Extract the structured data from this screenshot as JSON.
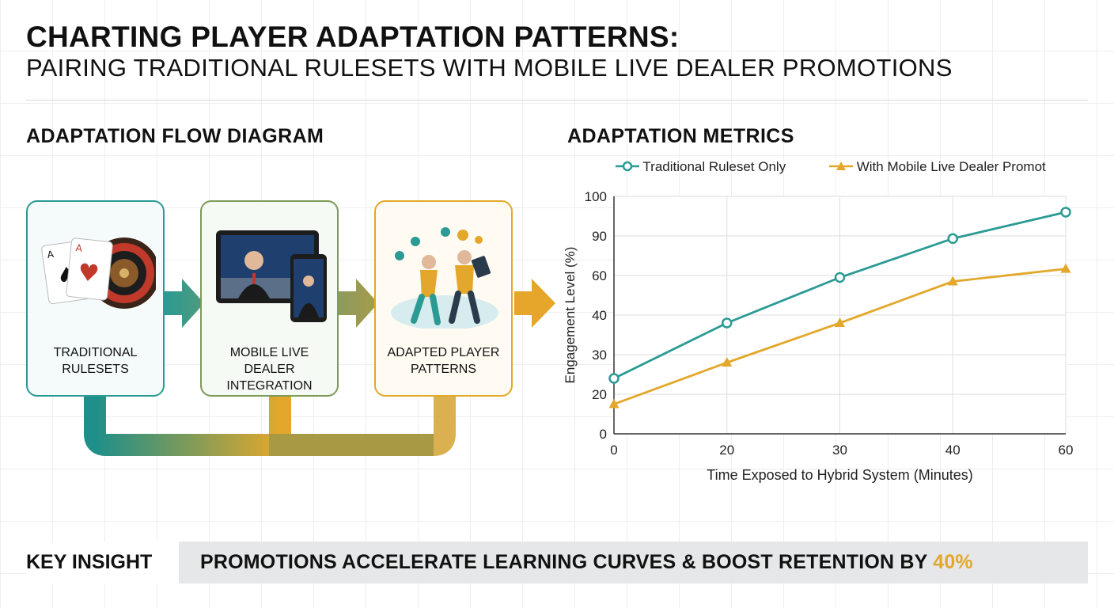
{
  "header": {
    "title": "CHARTING PLAYER ADAPTATION PATTERNS:",
    "subtitle": "PAIRING TRADITIONAL RULESETS WITH MOBILE LIVE DEALER PROMOTIONS"
  },
  "flow": {
    "title": "ADAPTATION FLOW DIAGRAM",
    "cards": [
      {
        "label": "TRADITIONAL\nRULESETS",
        "color": "#2b9a94"
      },
      {
        "label": "MOBILE LIVE\nDEALER INTEGRATION",
        "color": "#7d9a5a"
      },
      {
        "label": "ADAPTED PLAYER\nPATTERNS",
        "color": "#e3a82b"
      }
    ]
  },
  "metrics": {
    "title": "ADAPTATION METRICS"
  },
  "chart_data": {
    "type": "line",
    "x": [
      0,
      20,
      30,
      40,
      60
    ],
    "xticks": [
      "0",
      "20",
      "30",
      "40",
      "60"
    ],
    "yticks": [
      "0",
      "20",
      "30",
      "40",
      "60",
      "90",
      "100"
    ],
    "xlabel": "Time Exposed to Hybrid System (Minutes)",
    "ylabel": "Engagement Level (%)",
    "legend_position": "top",
    "grid": true,
    "series": [
      {
        "name": "Traditional Ruleset Only",
        "values": [
          24,
          38,
          59,
          88,
          96
        ],
        "color": "#2b9a94",
        "marker": "circle"
      },
      {
        "name": "With Mobile Live Dealer Promot",
        "values": [
          15,
          28,
          38,
          57,
          65
        ],
        "color": "#e3a82b",
        "marker": "triangle"
      }
    ]
  },
  "insight": {
    "label": "KEY INSIGHT",
    "text": "PROMOTIONS ACCELERATE LEARNING CURVES & BOOST RETENTION BY ",
    "highlight": "40%"
  }
}
